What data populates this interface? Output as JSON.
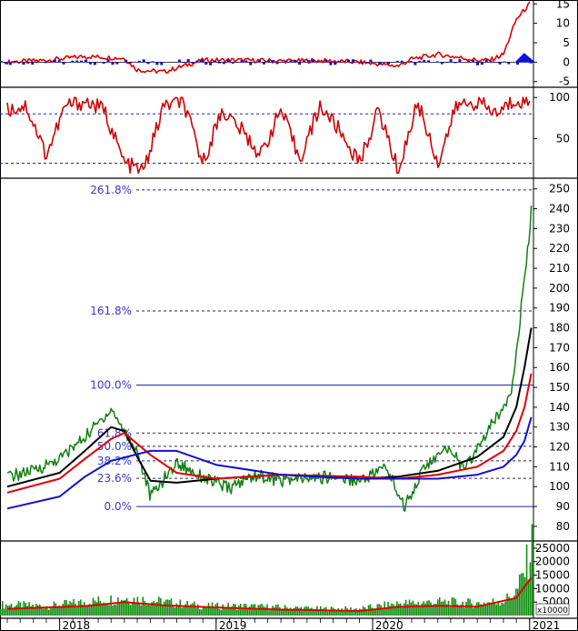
{
  "chart_data": [
    {
      "type": "line",
      "panel": "momentum-indicator",
      "y_ticks": [
        15,
        10,
        5,
        0,
        -5
      ],
      "ylim": [
        -6,
        16
      ],
      "colors": {
        "line": "#e00000",
        "histogram_pos": "#1010e0",
        "histogram_neg": "#1010e0"
      },
      "series": [
        {
          "role": "line",
          "x": [
            "2017-09-01",
            "2017-12-01",
            "2018-03-01",
            "2018-06-01",
            "2018-07-01",
            "2018-09-01",
            "2018-12-01",
            "2019-03-01",
            "2019-06-01",
            "2019-09-01",
            "2019-12-01",
            "2020-03-01",
            "2020-04-01",
            "2020-06-01",
            "2020-09-01",
            "2020-10-01",
            "2020-11-01",
            "2020-12-01",
            "2021-01-01"
          ],
          "y": [
            0,
            0.5,
            1.5,
            1.0,
            -2.0,
            -2.5,
            0.5,
            0.5,
            0.3,
            0.4,
            0.0,
            -1.0,
            0.8,
            2.0,
            0.5,
            0.5,
            2.0,
            11.0,
            15.0
          ]
        }
      ]
    },
    {
      "type": "line",
      "panel": "oscillator",
      "y_ticks": [
        100,
        50
      ],
      "ylim": [
        5,
        108
      ],
      "levels": [
        80,
        20
      ],
      "colors": {
        "line": "#d00000",
        "levels": "#2020c0"
      },
      "series": [
        {
          "role": "oscillator",
          "x": [
            "2017-09-01",
            "2017-10-15",
            "2017-12-01",
            "2018-01-15",
            "2018-03-01",
            "2018-04-15",
            "2018-06-01",
            "2018-07-15",
            "2018-09-01",
            "2018-10-15",
            "2018-12-01",
            "2019-01-15",
            "2019-03-01",
            "2019-04-15",
            "2019-06-01",
            "2019-07-15",
            "2019-09-01",
            "2019-10-15",
            "2019-12-01",
            "2020-01-15",
            "2020-03-01",
            "2020-04-15",
            "2020-06-01",
            "2020-07-15",
            "2020-09-01",
            "2020-10-15",
            "2020-12-01",
            "2021-01-01"
          ],
          "y": [
            85,
            90,
            30,
            90,
            95,
            85,
            20,
            10,
            90,
            95,
            20,
            85,
            60,
            30,
            85,
            25,
            90,
            60,
            20,
            85,
            10,
            95,
            20,
            90,
            95,
            80,
            98,
            95
          ]
        }
      ]
    },
    {
      "type": "line",
      "panel": "price",
      "y_ticks": [
        250,
        240,
        230,
        220,
        210,
        200,
        190,
        180,
        170,
        160,
        150,
        140,
        130,
        120,
        110,
        100,
        90,
        80
      ],
      "ylim": [
        74,
        254
      ],
      "fibonacci": [
        {
          "label": "261.8%",
          "value": 249.5
        },
        {
          "label": "161.8%",
          "value": 188.5
        },
        {
          "label": "100.0%",
          "value": 151.2
        },
        {
          "label": "61.8%",
          "value": 127.0
        },
        {
          "label": "50.0%",
          "value": 120.3
        },
        {
          "label": "38.2%",
          "value": 113.0
        },
        {
          "label": "23.6%",
          "value": 104.2
        },
        {
          "label": "0.0%",
          "value": 90.0
        }
      ],
      "colors": {
        "price": "#108010",
        "ma_short": "#000000",
        "ma_mid": "#e00000",
        "ma_long": "#1010d0",
        "fib": "#2020c0"
      },
      "series": [
        {
          "name": "",
          "role": "price",
          "x": [
            "2017-09-01",
            "2017-11-01",
            "2018-01-01",
            "2018-03-01",
            "2018-05-01",
            "2018-06-01",
            "2018-07-01",
            "2018-08-01",
            "2018-10-01",
            "2018-12-01",
            "2019-02-01",
            "2019-04-01",
            "2019-06-01",
            "2019-08-01",
            "2019-10-01",
            "2019-12-01",
            "2020-02-01",
            "2020-03-15",
            "2020-05-01",
            "2020-07-01",
            "2020-08-01",
            "2020-10-01",
            "2020-11-01",
            "2020-11-20",
            "2020-12-10",
            "2020-12-31",
            "2021-01-05"
          ],
          "y": [
            105,
            108,
            114,
            125,
            139,
            128,
            118,
            95,
            112,
            105,
            99,
            106,
            103,
            104,
            105,
            103,
            110,
            90,
            110,
            120,
            108,
            130,
            140,
            150,
            185,
            225,
            242
          ]
        },
        {
          "name": "",
          "role": "ma_short",
          "x": [
            "2017-09-01",
            "2018-01-01",
            "2018-03-01",
            "2018-05-01",
            "2018-06-01",
            "2018-07-01",
            "2018-08-01",
            "2018-10-01",
            "2019-01-01",
            "2019-06-01",
            "2019-12-01",
            "2020-03-01",
            "2020-06-01",
            "2020-09-01",
            "2020-11-01",
            "2020-12-01",
            "2020-12-20",
            "2021-01-05"
          ],
          "y": [
            100,
            107,
            118,
            130,
            128,
            115,
            103,
            102,
            104,
            106,
            104,
            105,
            108,
            115,
            125,
            140,
            160,
            180
          ]
        },
        {
          "name": "",
          "role": "ma_mid",
          "x": [
            "2017-09-01",
            "2018-01-01",
            "2018-03-01",
            "2018-05-01",
            "2018-06-01",
            "2018-08-01",
            "2018-10-01",
            "2019-01-01",
            "2019-06-01",
            "2019-12-01",
            "2020-03-01",
            "2020-06-01",
            "2020-09-01",
            "2020-11-01",
            "2020-12-01",
            "2020-12-20",
            "2021-01-05"
          ],
          "y": [
            97,
            104,
            114,
            124,
            127,
            116,
            107,
            104,
            106,
            105,
            104,
            106,
            110,
            118,
            128,
            140,
            157
          ]
        },
        {
          "name": "",
          "role": "ma_long",
          "x": [
            "2017-09-01",
            "2018-01-01",
            "2018-03-01",
            "2018-05-01",
            "2018-08-01",
            "2018-10-01",
            "2019-01-01",
            "2019-06-01",
            "2019-12-01",
            "2020-03-01",
            "2020-06-01",
            "2020-09-01",
            "2020-11-01",
            "2020-12-01",
            "2020-12-20",
            "2021-01-05"
          ],
          "y": [
            89,
            95,
            105,
            113,
            118,
            118,
            111,
            106,
            104,
            104,
            104,
            106,
            110,
            116,
            123,
            135
          ]
        }
      ]
    },
    {
      "type": "bar",
      "panel": "volume",
      "y_ticks": [
        25000,
        20000,
        15000,
        10000,
        5000
      ],
      "ylim": [
        0,
        27000
      ],
      "multiplier_label": "x10000",
      "colors": {
        "bars": "#109010",
        "average": "#e00000"
      },
      "series": [
        {
          "role": "volume",
          "x": [
            "2017-09-01",
            "2017-12-01",
            "2018-03-01",
            "2018-06-01",
            "2018-09-01",
            "2018-12-01",
            "2019-03-01",
            "2019-06-01",
            "2019-09-01",
            "2019-12-01",
            "2020-03-01",
            "2020-06-01",
            "2020-09-01",
            "2020-11-01",
            "2020-12-01",
            "2020-12-20",
            "2021-01-05"
          ],
          "y": [
            4000,
            3500,
            5000,
            6500,
            5000,
            3500,
            3500,
            3000,
            2500,
            2500,
            4500,
            5000,
            4500,
            5500,
            9000,
            17000,
            26000
          ]
        },
        {
          "role": "volume_average",
          "x": [
            "2017-09-01",
            "2018-03-01",
            "2018-06-01",
            "2018-09-01",
            "2019-01-01",
            "2019-06-01",
            "2019-12-01",
            "2020-03-01",
            "2020-06-01",
            "2020-09-01",
            "2020-12-01",
            "2021-01-05"
          ],
          "y": [
            2500,
            3500,
            5000,
            3800,
            3000,
            2200,
            1700,
            3200,
            3600,
            3300,
            6500,
            14000
          ]
        }
      ]
    }
  ],
  "x_axis": {
    "tick_labels": [
      "2018",
      "2019",
      "2020",
      "2021"
    ],
    "label_dates": [
      "2018-01-01",
      "2019-01-01",
      "2020-01-01",
      "2021-01-01"
    ],
    "range": [
      "2017-08-15",
      "2021-01-10"
    ]
  }
}
